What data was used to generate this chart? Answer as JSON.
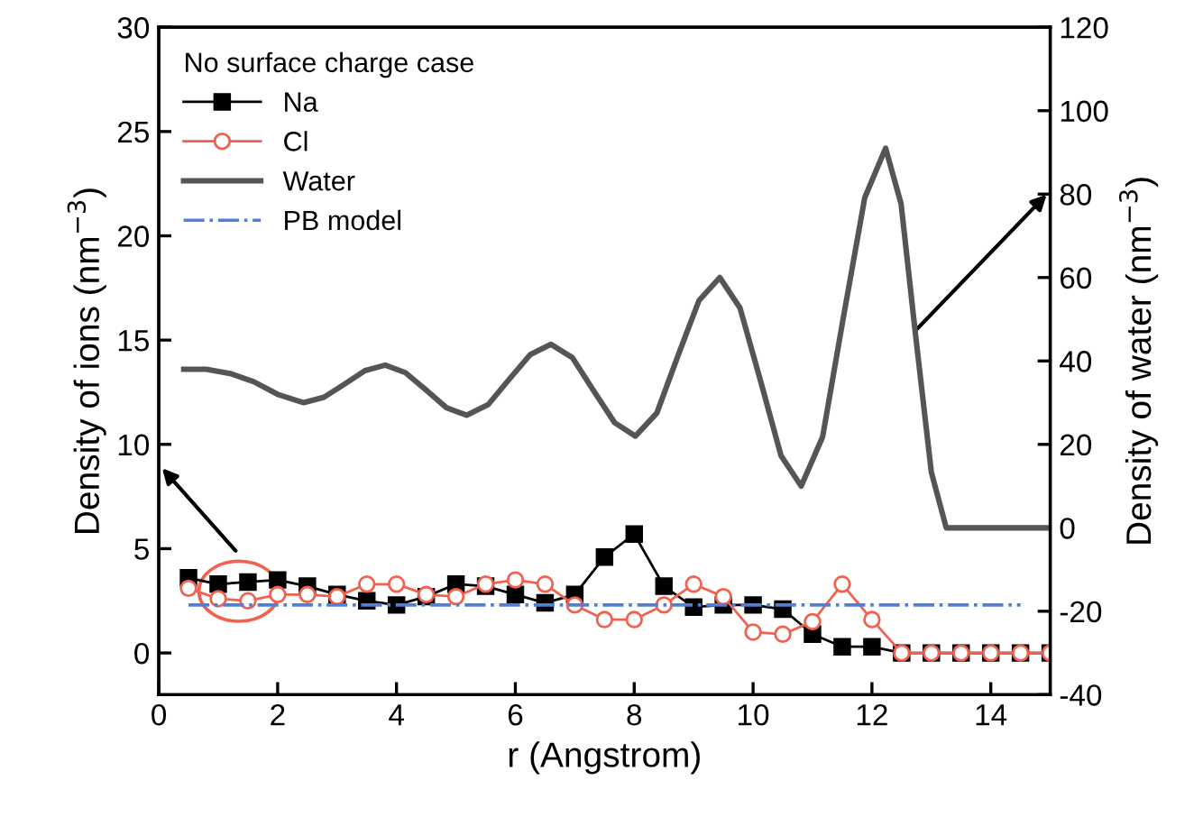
{
  "chart_data": {
    "type": "line",
    "xlabel": "r (Angstrom)",
    "ylabel": "Density of ions (nm$^{−3}$)",
    "y2label": "Density of water (nm$^{−3}$)",
    "legend_title": "No surface charge case",
    "legend": "top left",
    "grid": false,
    "xlim": [
      0,
      15
    ],
    "xticks": [
      0,
      2,
      4,
      6,
      8,
      10,
      12,
      14
    ],
    "ylim": [
      -2,
      30
    ],
    "yticks": [
      0,
      5,
      10,
      15,
      20,
      25,
      30
    ],
    "y2lim": [
      -40,
      120
    ],
    "y2ticks": [
      -40,
      -20,
      0,
      20,
      40,
      60,
      80,
      100,
      120
    ],
    "series": [
      {
        "name": "Na",
        "color": "#000000",
        "marker": "square",
        "line_style": "solid",
        "x": [
          0.5,
          1,
          1.5,
          2,
          2.5,
          3,
          3.5,
          4,
          4.5,
          5,
          5.5,
          6,
          6.5,
          7,
          7.5,
          8,
          8.5,
          9,
          9.5,
          10,
          10.5,
          11,
          11.5,
          12,
          12.5,
          13,
          13.5,
          14,
          14.5,
          15
        ],
        "values": [
          3.6,
          3.3,
          3.4,
          3.5,
          3.2,
          2.8,
          2.5,
          2.3,
          2.7,
          3.3,
          3.2,
          2.8,
          2.4,
          2.8,
          4.6,
          5.7,
          3.2,
          2.2,
          2.3,
          2.3,
          2.1,
          0.9,
          0.3,
          0.3,
          0,
          0,
          0,
          0,
          0,
          0
        ]
      },
      {
        "name": "Cl",
        "color": "#f0614f",
        "marker": "circle",
        "line_style": "solid",
        "x": [
          0.5,
          1,
          1.5,
          2,
          2.5,
          3,
          3.5,
          4,
          4.5,
          5,
          5.5,
          6,
          6.5,
          7,
          7.5,
          8,
          8.5,
          9,
          9.5,
          10,
          10.5,
          11,
          11.5,
          12,
          12.5,
          13,
          13.5,
          14,
          14.5,
          15
        ],
        "values": [
          3.1,
          2.6,
          2.5,
          2.8,
          2.8,
          2.7,
          3.3,
          3.3,
          2.8,
          2.7,
          3.3,
          3.5,
          3.3,
          2.3,
          1.6,
          1.6,
          2.3,
          3.3,
          2.7,
          1.0,
          0.9,
          1.5,
          3.3,
          1.6,
          0,
          0,
          0,
          0,
          0,
          0
        ]
      },
      {
        "name": "Water",
        "color": "#555555",
        "marker": "none",
        "line_style": "solid",
        "axis": "y2",
        "x": [
          0.42,
          0.8,
          1.2,
          1.6,
          2.0,
          2.44,
          2.78,
          3.13,
          3.47,
          3.81,
          4.15,
          4.5,
          4.84,
          5.18,
          5.54,
          5.89,
          6.25,
          6.6,
          6.96,
          7.31,
          7.67,
          8.02,
          8.38,
          8.73,
          9.09,
          9.44,
          9.78,
          10.13,
          10.47,
          10.81,
          11.17,
          11.52,
          11.88,
          12.23,
          12.49,
          12.74,
          13.0,
          13.25,
          15
        ],
        "values": [
          38,
          38,
          37,
          35,
          32,
          30,
          31.3,
          34.5,
          37.7,
          39,
          37.2,
          33,
          28.8,
          27,
          29.5,
          35.5,
          41.5,
          44,
          40.8,
          33,
          25.2,
          22,
          27.5,
          41,
          54.5,
          60,
          52.7,
          35,
          17.3,
          10,
          21.8,
          50.5,
          79.2,
          91,
          77.7,
          45.5,
          13.3,
          0,
          0
        ]
      },
      {
        "name": "PB model",
        "color": "#4f7fd6",
        "marker": "none",
        "line_style": "dashdot",
        "x": [
          0.5,
          14.5
        ],
        "values": [
          2.3,
          2.3
        ]
      }
    ]
  }
}
